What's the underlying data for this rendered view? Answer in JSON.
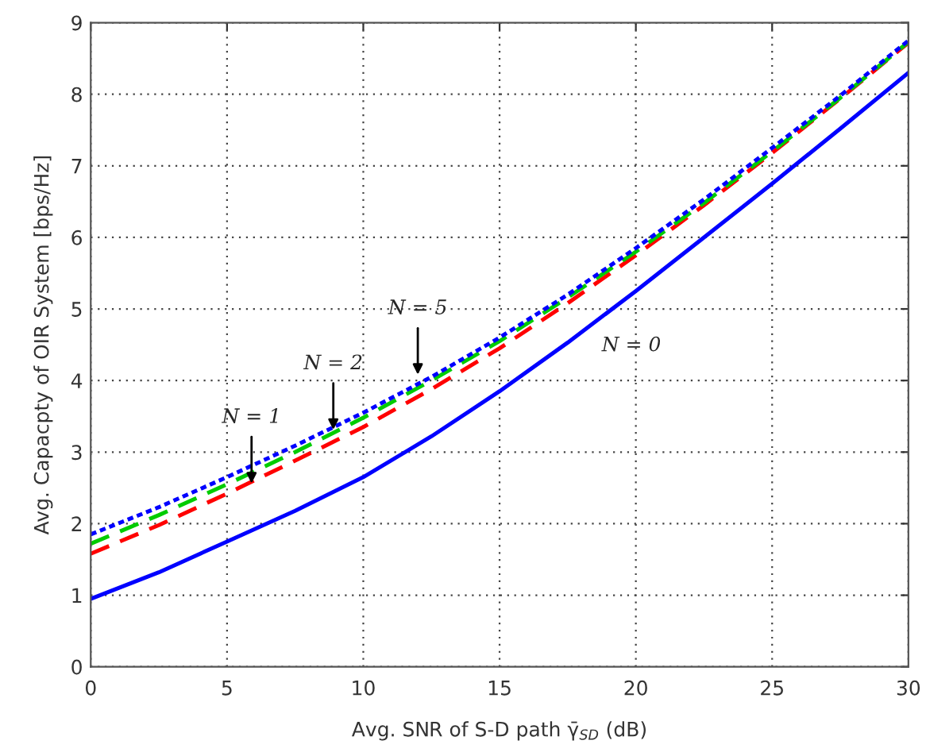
{
  "chart_data": {
    "type": "line",
    "xlabel": "Avg. SNR of S-D path γ̄$_{SD}$ (dB)",
    "ylabel": "Avg. Capacpty of OIR System [bps/Hz]",
    "x": [
      0,
      2.5,
      5,
      7.5,
      10,
      12.5,
      15,
      17.5,
      20,
      22.5,
      25,
      27.5,
      30
    ],
    "series": [
      {
        "color": "#0000ff",
        "line_style": "solid",
        "values": [
          0.95,
          1.32,
          1.75,
          2.18,
          2.65,
          3.22,
          3.85,
          4.53,
          5.25,
          6.0,
          6.75,
          7.52,
          8.3
        ]
      },
      {
        "color": "#ff0000",
        "line_style": "dashed",
        "values": [
          1.58,
          1.98,
          2.42,
          2.88,
          3.35,
          3.88,
          4.45,
          5.08,
          5.75,
          6.45,
          7.18,
          7.94,
          8.72
        ]
      },
      {
        "color": "#00cc00",
        "line_style": "dashed",
        "values": [
          1.72,
          2.12,
          2.55,
          3.0,
          3.48,
          4.0,
          4.55,
          5.16,
          5.8,
          6.48,
          7.2,
          7.95,
          8.73
        ]
      },
      {
        "color": "#0000ff",
        "line_style": "dotted",
        "values": [
          1.85,
          2.23,
          2.65,
          3.09,
          3.55,
          4.05,
          4.6,
          5.2,
          5.85,
          6.53,
          7.25,
          7.98,
          8.75
        ]
      }
    ],
    "xlim": [
      0,
      30
    ],
    "ylim": [
      0,
      9
    ],
    "xticks": [
      0,
      5,
      10,
      15,
      20,
      25,
      30
    ],
    "yticks": [
      0,
      1,
      2,
      3,
      4,
      5,
      6,
      7,
      8,
      9
    ],
    "grid": true,
    "legend": false,
    "annotations": [
      {
        "text": "N = 1",
        "x": 5.9,
        "y": 2.5
      },
      {
        "text": "N = 2",
        "x": 8.9,
        "y": 3.25
      },
      {
        "text": "N = 5",
        "x": 12,
        "y": 4.02
      },
      "N = 0"
    ]
  }
}
